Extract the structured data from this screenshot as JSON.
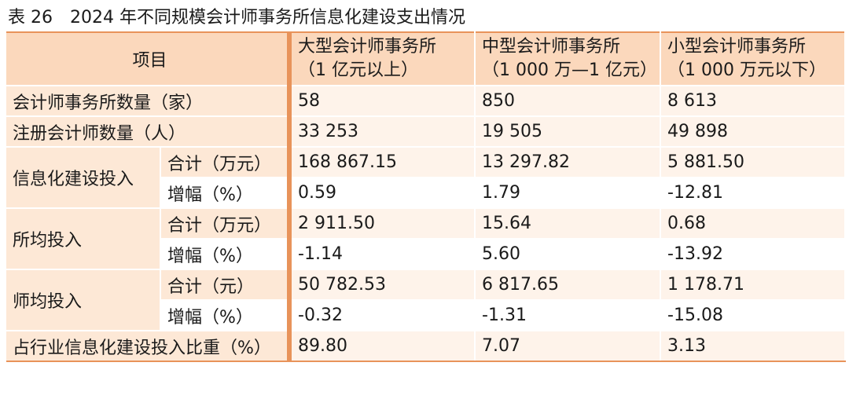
{
  "caption": {
    "label": "表 26",
    "title": "2024 年不同规模会计师事务所信息化建设支出情况"
  },
  "header": {
    "item": "项目",
    "large_l1": "大型会计师事务所",
    "large_l2": "（1 亿元以上）",
    "medium_l1": "中型会计师事务所",
    "medium_l2": "（1 000 万—1 亿元）",
    "small_l1": "小型会计师事务所",
    "small_l2": "（1 000 万元以下）"
  },
  "rows": {
    "firm_count": {
      "label": "会计师事务所数量（家）",
      "large": "58",
      "medium": "850",
      "small": "8 613"
    },
    "cpa_count": {
      "label": "注册会计师数量（人）",
      "large": "33 253",
      "medium": "19 505",
      "small": "49 898"
    },
    "it_invest": {
      "label": "信息化建设投入",
      "total": {
        "label": "合计（万元）",
        "large": "168 867.15",
        "medium": "13 297.82",
        "small": "5 881.50"
      },
      "growth": {
        "label": "增幅（%）",
        "large": "0.59",
        "medium": "1.79",
        "small": "-12.81"
      }
    },
    "per_firm": {
      "label": "所均投入",
      "total": {
        "label": "合计（万元）",
        "large": "2 911.50",
        "medium": "15.64",
        "small": "0.68"
      },
      "growth": {
        "label": "增幅（%）",
        "large": "-1.14",
        "medium": "5.60",
        "small": "-13.92"
      }
    },
    "per_cpa": {
      "label": "师均投入",
      "total": {
        "label": "合计（元）",
        "large": "50 782.53",
        "medium": "6 817.65",
        "small": "1 178.71"
      },
      "growth": {
        "label": "增幅（%）",
        "large": "-0.32",
        "medium": "-1.31",
        "small": "-15.08"
      }
    },
    "share": {
      "label": "占行业信息化建设投入比重（%）",
      "large": "89.80",
      "medium": "7.07",
      "small": "3.13"
    }
  },
  "colors": {
    "accent": "#e8935a",
    "header_bg": "#fbd8bc",
    "label_bg": "#fde8d6",
    "value_bg": "#fef3ea"
  }
}
